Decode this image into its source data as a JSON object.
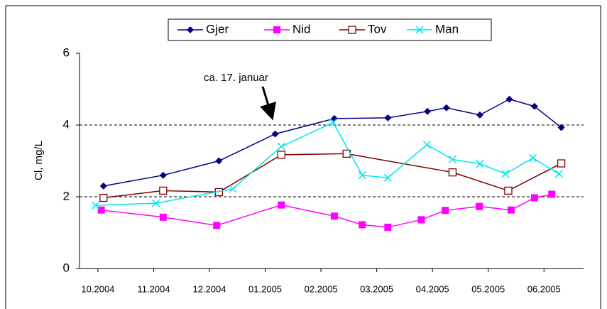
{
  "chart_data": {
    "type": "line",
    "annotation": "ca. 17. januar",
    "y_label": "Cl, mg/L",
    "xlim": [
      9.67,
      18.71
    ],
    "xticks": [
      {
        "value": 10,
        "label": "10.2004"
      },
      {
        "value": 11,
        "label": "11.2004"
      },
      {
        "value": 12,
        "label": "12.2004"
      },
      {
        "value": 13,
        "label": "01.2005"
      },
      {
        "value": 14,
        "label": "02.2005"
      },
      {
        "value": 15,
        "label": "03.2005"
      },
      {
        "value": 16,
        "label": "04.2005"
      },
      {
        "value": 17,
        "label": "05.2005"
      },
      {
        "value": 18,
        "label": "06.2005"
      }
    ],
    "ylim": [
      0,
      6
    ],
    "yticks": [
      0,
      2,
      4,
      6
    ],
    "grid": true,
    "legend": "top",
    "series": [
      {
        "name": "Gjer",
        "color": "#000080",
        "marker": "diamond",
        "x": [
          10.1,
          11.17,
          12.17,
          13.18,
          14.24,
          15.2,
          15.91,
          16.25,
          16.85,
          17.38,
          17.83,
          18.31
        ],
        "values": [
          2.3,
          2.6,
          3.0,
          3.75,
          4.18,
          4.2,
          4.38,
          4.48,
          4.28,
          4.72,
          4.52,
          3.93
        ]
      },
      {
        "name": "Nid",
        "color": "#ff00ff",
        "marker": "square",
        "x": [
          10.06,
          11.17,
          12.13,
          13.29,
          14.24,
          14.74,
          15.2,
          15.8,
          16.23,
          16.84,
          17.41,
          17.83,
          18.14
        ],
        "values": [
          1.63,
          1.43,
          1.2,
          1.77,
          1.46,
          1.22,
          1.15,
          1.36,
          1.62,
          1.73,
          1.63,
          1.97,
          2.07
        ]
      },
      {
        "name": "Tov",
        "color": "#800000",
        "marker": "open-square",
        "x": [
          10.1,
          11.17,
          12.17,
          13.29,
          14.46,
          16.36,
          17.36,
          18.31
        ],
        "values": [
          1.97,
          2.17,
          2.13,
          3.17,
          3.2,
          2.68,
          2.17,
          2.93
        ]
      },
      {
        "name": "Man",
        "color": "#00e5ee",
        "marker": "x",
        "x": [
          9.96,
          11.04,
          12.42,
          13.29,
          14.22,
          14.74,
          15.2,
          15.9,
          16.36,
          16.85,
          17.31,
          17.8,
          18.27
        ],
        "values": [
          1.76,
          1.82,
          2.22,
          3.4,
          4.07,
          2.6,
          2.53,
          3.45,
          3.04,
          2.92,
          2.64,
          3.08,
          2.64
        ]
      }
    ]
  }
}
